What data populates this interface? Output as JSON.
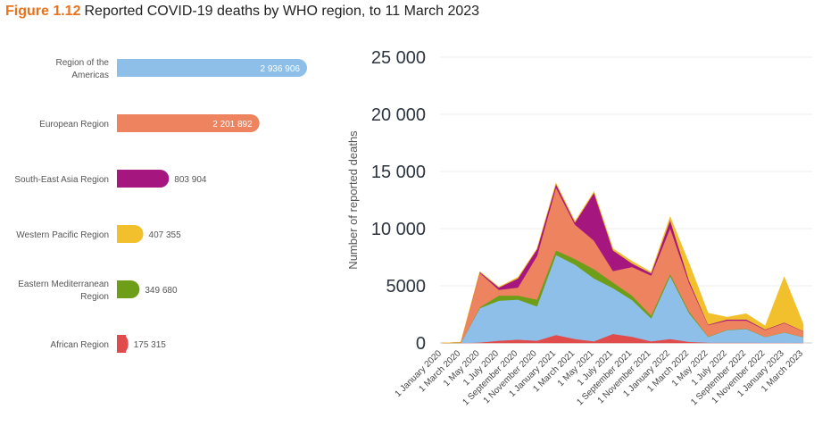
{
  "figure": {
    "number": "Figure 1.12",
    "title": "Reported COVID-19 deaths by WHO region, to 11 March 2023"
  },
  "chart_data": [
    {
      "type": "bar",
      "orientation": "horizontal",
      "categories": [
        "Region of the Americas",
        "European Region",
        "South-East Asia Region",
        "Western Pacific Region",
        "Eastern Mediterranean Region",
        "African Region"
      ],
      "category_lines": [
        [
          "Region of the",
          "Americas"
        ],
        [
          "European Region"
        ],
        [
          "South-East Asia Region"
        ],
        [
          "Western Pacific Region"
        ],
        [
          "Eastern Mediterranean",
          "Region"
        ],
        [
          "African Region"
        ]
      ],
      "values": [
        2936906,
        2201892,
        803904,
        407355,
        349680,
        175315
      ],
      "value_labels": [
        "2 936 906",
        "2 201 892",
        "803 904",
        "407 355",
        "349 680",
        "175 315"
      ],
      "colors": [
        "#8dbfe8",
        "#ee8360",
        "#a5177f",
        "#f2c02d",
        "#6e9e17",
        "#e04c4c"
      ]
    },
    {
      "type": "area",
      "stacked": true,
      "ylabel": "Number of reported deaths",
      "ylim": [
        0,
        25000
      ],
      "yticks": [
        0,
        5000,
        10000,
        15000,
        20000,
        25000
      ],
      "ytick_labels": [
        "0",
        "5000",
        "10 000",
        "15 000",
        "20 000",
        "25 000"
      ],
      "xtick_labels": [
        "1 January 2020",
        "1 March 2020",
        "1 May 2020",
        "1 July 2020",
        "1 September 2020",
        "1 November 2020",
        "1 January 2021",
        "1 March 2021",
        "1 May 2021",
        "1 July 2021",
        "1 September 2021",
        "1 November 2021",
        "1 January 2022",
        "1 March 2022",
        "1 May 2022",
        "1 July 2022",
        "1 September 2022",
        "1 November 2022",
        "1 January 2023",
        "1 March 2023"
      ],
      "x": [
        "2020-01",
        "2020-03",
        "2020-05",
        "2020-07",
        "2020-09",
        "2020-11",
        "2021-01",
        "2021-03",
        "2021-05",
        "2021-07",
        "2021-09",
        "2021-11",
        "2022-01",
        "2022-03",
        "2022-05",
        "2022-07",
        "2022-09",
        "2022-11",
        "2023-01",
        "2023-03"
      ],
      "series": [
        {
          "name": "African Region",
          "color": "#e04c4c",
          "values": [
            0,
            0,
            50,
            200,
            300,
            200,
            700,
            350,
            150,
            800,
            550,
            150,
            350,
            100,
            30,
            30,
            30,
            20,
            20,
            10
          ]
        },
        {
          "name": "Region of the Americas",
          "color": "#8dbfe8",
          "values": [
            0,
            0,
            3000,
            3500,
            3500,
            3000,
            7000,
            6500,
            5500,
            4000,
            3200,
            2000,
            5500,
            2500,
            500,
            1100,
            1200,
            500,
            900,
            500
          ]
        },
        {
          "name": "Eastern Mediterranean Region",
          "color": "#6e9e17",
          "values": [
            0,
            0,
            80,
            450,
            350,
            600,
            400,
            500,
            800,
            500,
            400,
            250,
            200,
            150,
            30,
            30,
            30,
            20,
            20,
            10
          ]
        },
        {
          "name": "European Region",
          "color": "#ee8360",
          "values": [
            0,
            50,
            3000,
            500,
            700,
            3800,
            5500,
            3000,
            2500,
            1000,
            2500,
            3500,
            4000,
            2500,
            1000,
            800,
            700,
            600,
            800,
            500
          ]
        },
        {
          "name": "South-East Asia Region",
          "color": "#a5177f",
          "values": [
            0,
            0,
            80,
            200,
            800,
            600,
            300,
            200,
            4200,
            1800,
            300,
            200,
            700,
            200,
            50,
            100,
            100,
            50,
            50,
            30
          ]
        },
        {
          "name": "Western Pacific Region",
          "color": "#f2c02d",
          "values": [
            0,
            0,
            40,
            50,
            100,
            50,
            100,
            100,
            100,
            150,
            200,
            100,
            300,
            1500,
            1000,
            200,
            500,
            300,
            4000,
            600
          ]
        }
      ]
    }
  ]
}
